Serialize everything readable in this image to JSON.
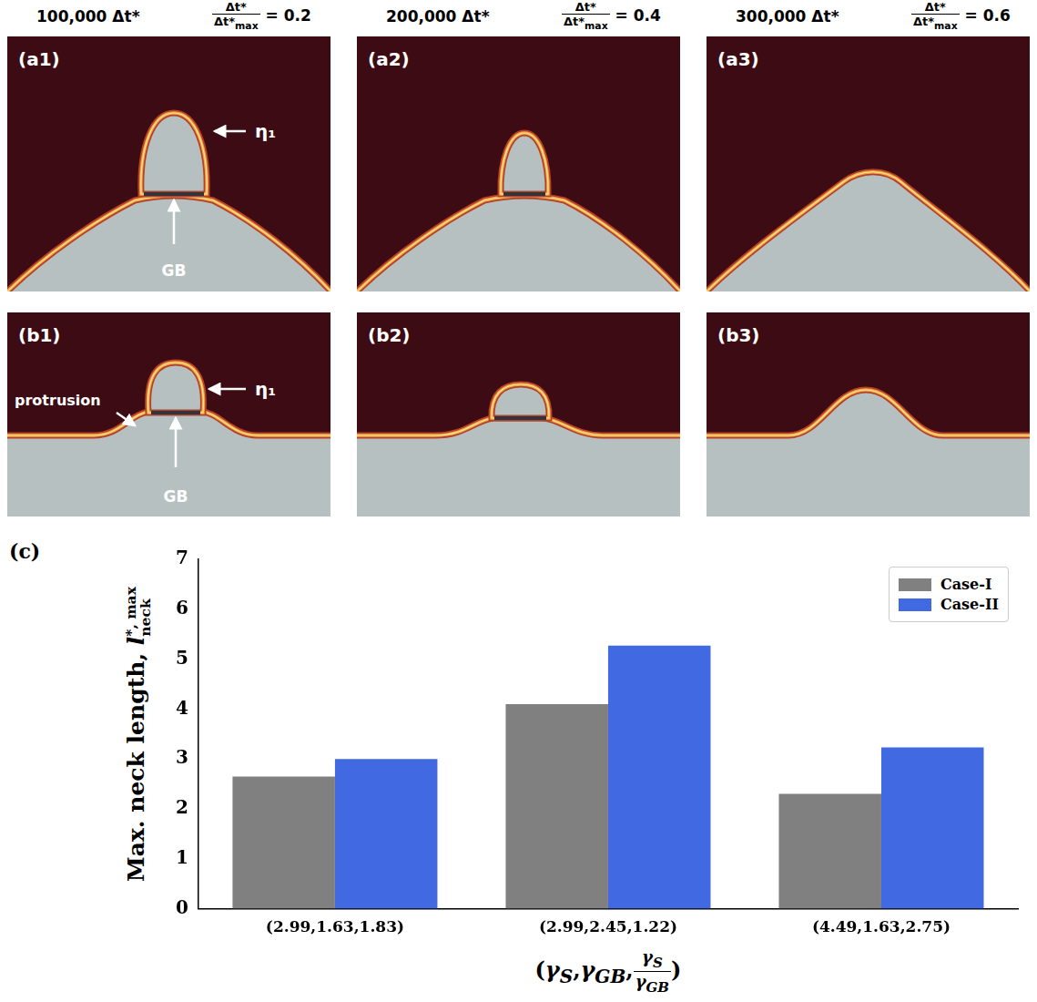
{
  "header": {
    "columns": [
      {
        "time": "100,000 Δt*",
        "ratio": {
          "numerator": "Δt*",
          "denominator": {
            "base": "Δt*",
            "sub": "max"
          },
          "value": 0.2
        }
      },
      {
        "time": "200,000 Δt*",
        "ratio": {
          "numerator": "Δt*",
          "denominator": {
            "base": "Δt*",
            "sub": "max"
          },
          "value": 0.4
        }
      },
      {
        "time": "300,000 Δt*",
        "ratio": {
          "numerator": "Δt*",
          "denominator": {
            "base": "Δt*",
            "sub": "max"
          },
          "value": 0.6
        }
      }
    ]
  },
  "panels": [
    {
      "label": "(a1)",
      "eta": "η₁",
      "gb": "GB"
    },
    {
      "label": "(a2)"
    },
    {
      "label": "(a3)"
    },
    {
      "label": "(b1)",
      "eta": "η₁",
      "gb": "GB",
      "protrusion": "protrusion"
    },
    {
      "label": "(b2)"
    },
    {
      "label": "(b3)"
    }
  ],
  "chart_data": {
    "type": "bar",
    "panel_label": "(c)",
    "categories": [
      "(2.99,1.63,1.83)",
      "(2.99,2.45,1.22)",
      "(4.49,1.63,2.75)"
    ],
    "series": [
      {
        "name": "Case-I",
        "color": "#808080",
        "values": [
          2.65,
          4.1,
          2.3
        ]
      },
      {
        "name": "Case-II",
        "color": "#4169e1",
        "values": [
          3.0,
          5.27,
          3.23
        ]
      }
    ],
    "ylim": [
      0,
      7
    ],
    "yticks": [
      0,
      1,
      2,
      3,
      4,
      5,
      6,
      7
    ],
    "grid": false,
    "legend": "top-right",
    "y_label": {
      "text": "Max. neck length, ",
      "symbol": "l",
      "sup": "*, max",
      "sub": "neck"
    },
    "x_label": {
      "terms": [
        [
          "γ",
          "S"
        ],
        [
          "γ",
          "GB"
        ]
      ],
      "ratio": {
        "numerator": [
          "γ",
          "S"
        ],
        "denominator": [
          "γ",
          "GB"
        ]
      }
    }
  }
}
